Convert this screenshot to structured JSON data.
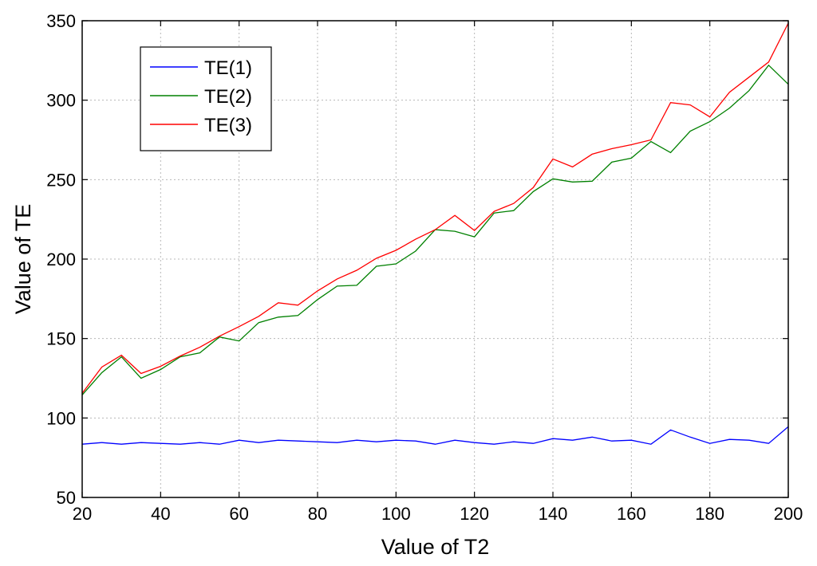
{
  "chart_data": {
    "type": "line",
    "xlabel": "Value of T2",
    "ylabel": "Value of TE",
    "xlim": [
      20,
      200
    ],
    "ylim": [
      50,
      350
    ],
    "xticks": [
      20,
      40,
      60,
      80,
      100,
      120,
      140,
      160,
      180,
      200
    ],
    "yticks": [
      50,
      100,
      150,
      200,
      250,
      300,
      350
    ],
    "grid": true,
    "legend_position": "top-left",
    "x": [
      20,
      25,
      30,
      35,
      40,
      45,
      50,
      55,
      60,
      65,
      70,
      75,
      80,
      85,
      90,
      95,
      100,
      105,
      110,
      115,
      120,
      125,
      130,
      135,
      140,
      145,
      150,
      155,
      160,
      165,
      170,
      175,
      180,
      185,
      190,
      195,
      200
    ],
    "series": [
      {
        "name": "TE(1)",
        "color": "#0000ff",
        "values": [
          83.5,
          84.5,
          83.5,
          84.5,
          84,
          83.5,
          84.5,
          83.5,
          86,
          84.5,
          86,
          85.5,
          85,
          84.5,
          86,
          85,
          86,
          85.5,
          83.5,
          86,
          84.5,
          83.5,
          85,
          84,
          87,
          86,
          88,
          85.5,
          86,
          83.5,
          92.5,
          88,
          84,
          86.5,
          86,
          84,
          94.5
        ]
      },
      {
        "name": "TE(2)",
        "color": "#008000",
        "values": [
          114.5,
          128.5,
          138.5,
          125,
          130.5,
          138.5,
          141,
          151,
          148.5,
          160,
          163.5,
          164.5,
          174.5,
          183,
          183.5,
          195.5,
          197,
          205,
          218.5,
          217.5,
          214,
          229,
          230.5,
          242.5,
          250.5,
          248.5,
          249,
          261,
          263.5,
          274,
          267,
          280.5,
          286.5,
          295,
          306,
          322,
          310
        ]
      },
      {
        "name": "TE(3)",
        "color": "#ff0000",
        "values": [
          115.5,
          132,
          139.5,
          128,
          132.5,
          139,
          144.5,
          151.5,
          157.5,
          164,
          172.5,
          171,
          180,
          187.5,
          193,
          200.5,
          205.5,
          212.5,
          218.5,
          227.5,
          218,
          230,
          235,
          245,
          263,
          258,
          266,
          269.5,
          272,
          275,
          298.5,
          297,
          289.5,
          305,
          314.5,
          324,
          348.5
        ]
      }
    ]
  }
}
